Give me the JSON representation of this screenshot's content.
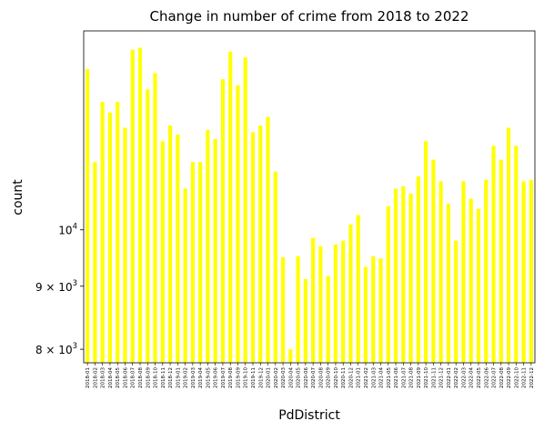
{
  "chart_data": {
    "type": "bar",
    "title": "Change in number of crime from 2018 to 2022",
    "xlabel": "PdDistrict",
    "ylabel": "count",
    "yscale": "log",
    "ylim": [
      7800,
      14500
    ],
    "bar_color": "#ffff00",
    "grid": false,
    "legend": "none",
    "yticks": [
      {
        "value": 8000,
        "label_base": "8",
        "label_mid": " × 10",
        "label_exp": "3"
      },
      {
        "value": 9000,
        "label_base": "9",
        "label_mid": " × 10",
        "label_exp": "3"
      },
      {
        "value": 10000,
        "label_base": "10",
        "label_mid": "",
        "label_exp": "4"
      }
    ],
    "categories": [
      "2018-01",
      "2018-02",
      "2018-03",
      "2018-04",
      "2018-05",
      "2018-06",
      "2018-07",
      "2018-08",
      "2018-09",
      "2018-10",
      "2018-11",
      "2018-12",
      "2019-01",
      "2019-02",
      "2019-03",
      "2019-04",
      "2019-05",
      "2019-06",
      "2019-07",
      "2019-08",
      "2019-09",
      "2019-10",
      "2019-11",
      "2019-12",
      "2020-01",
      "2020-02",
      "2020-03",
      "2020-04",
      "2020-05",
      "2020-06",
      "2020-07",
      "2020-08",
      "2020-09",
      "2020-10",
      "2020-11",
      "2020-12",
      "2021-01",
      "2021-02",
      "2021-03",
      "2021-04",
      "2021-05",
      "2021-06",
      "2021-07",
      "2021-08",
      "2021-09",
      "2021-10",
      "2021-11",
      "2021-12",
      "2022-01",
      "2022-02",
      "2022-03",
      "2022-04",
      "2022-05",
      "2022-06",
      "2022-07",
      "2022-08",
      "2022-09",
      "2022-10",
      "2022-11",
      "2022-12"
    ],
    "values": [
      13500,
      11350,
      12700,
      12450,
      12700,
      12100,
      14000,
      14050,
      13000,
      13400,
      11800,
      12150,
      11950,
      10800,
      11350,
      11350,
      12050,
      11850,
      13250,
      13950,
      13100,
      13800,
      12000,
      12150,
      12350,
      11150,
      9500,
      8000,
      9520,
      9120,
      9850,
      9700,
      9170,
      9730,
      9800,
      10100,
      10280,
      9330,
      9520,
      9480,
      10450,
      10800,
      10850,
      10700,
      11050,
      11800,
      11400,
      10950,
      10500,
      9800,
      10950,
      10600,
      10400,
      10980,
      11700,
      11400,
      12100,
      11700,
      10950,
      10980
    ]
  }
}
